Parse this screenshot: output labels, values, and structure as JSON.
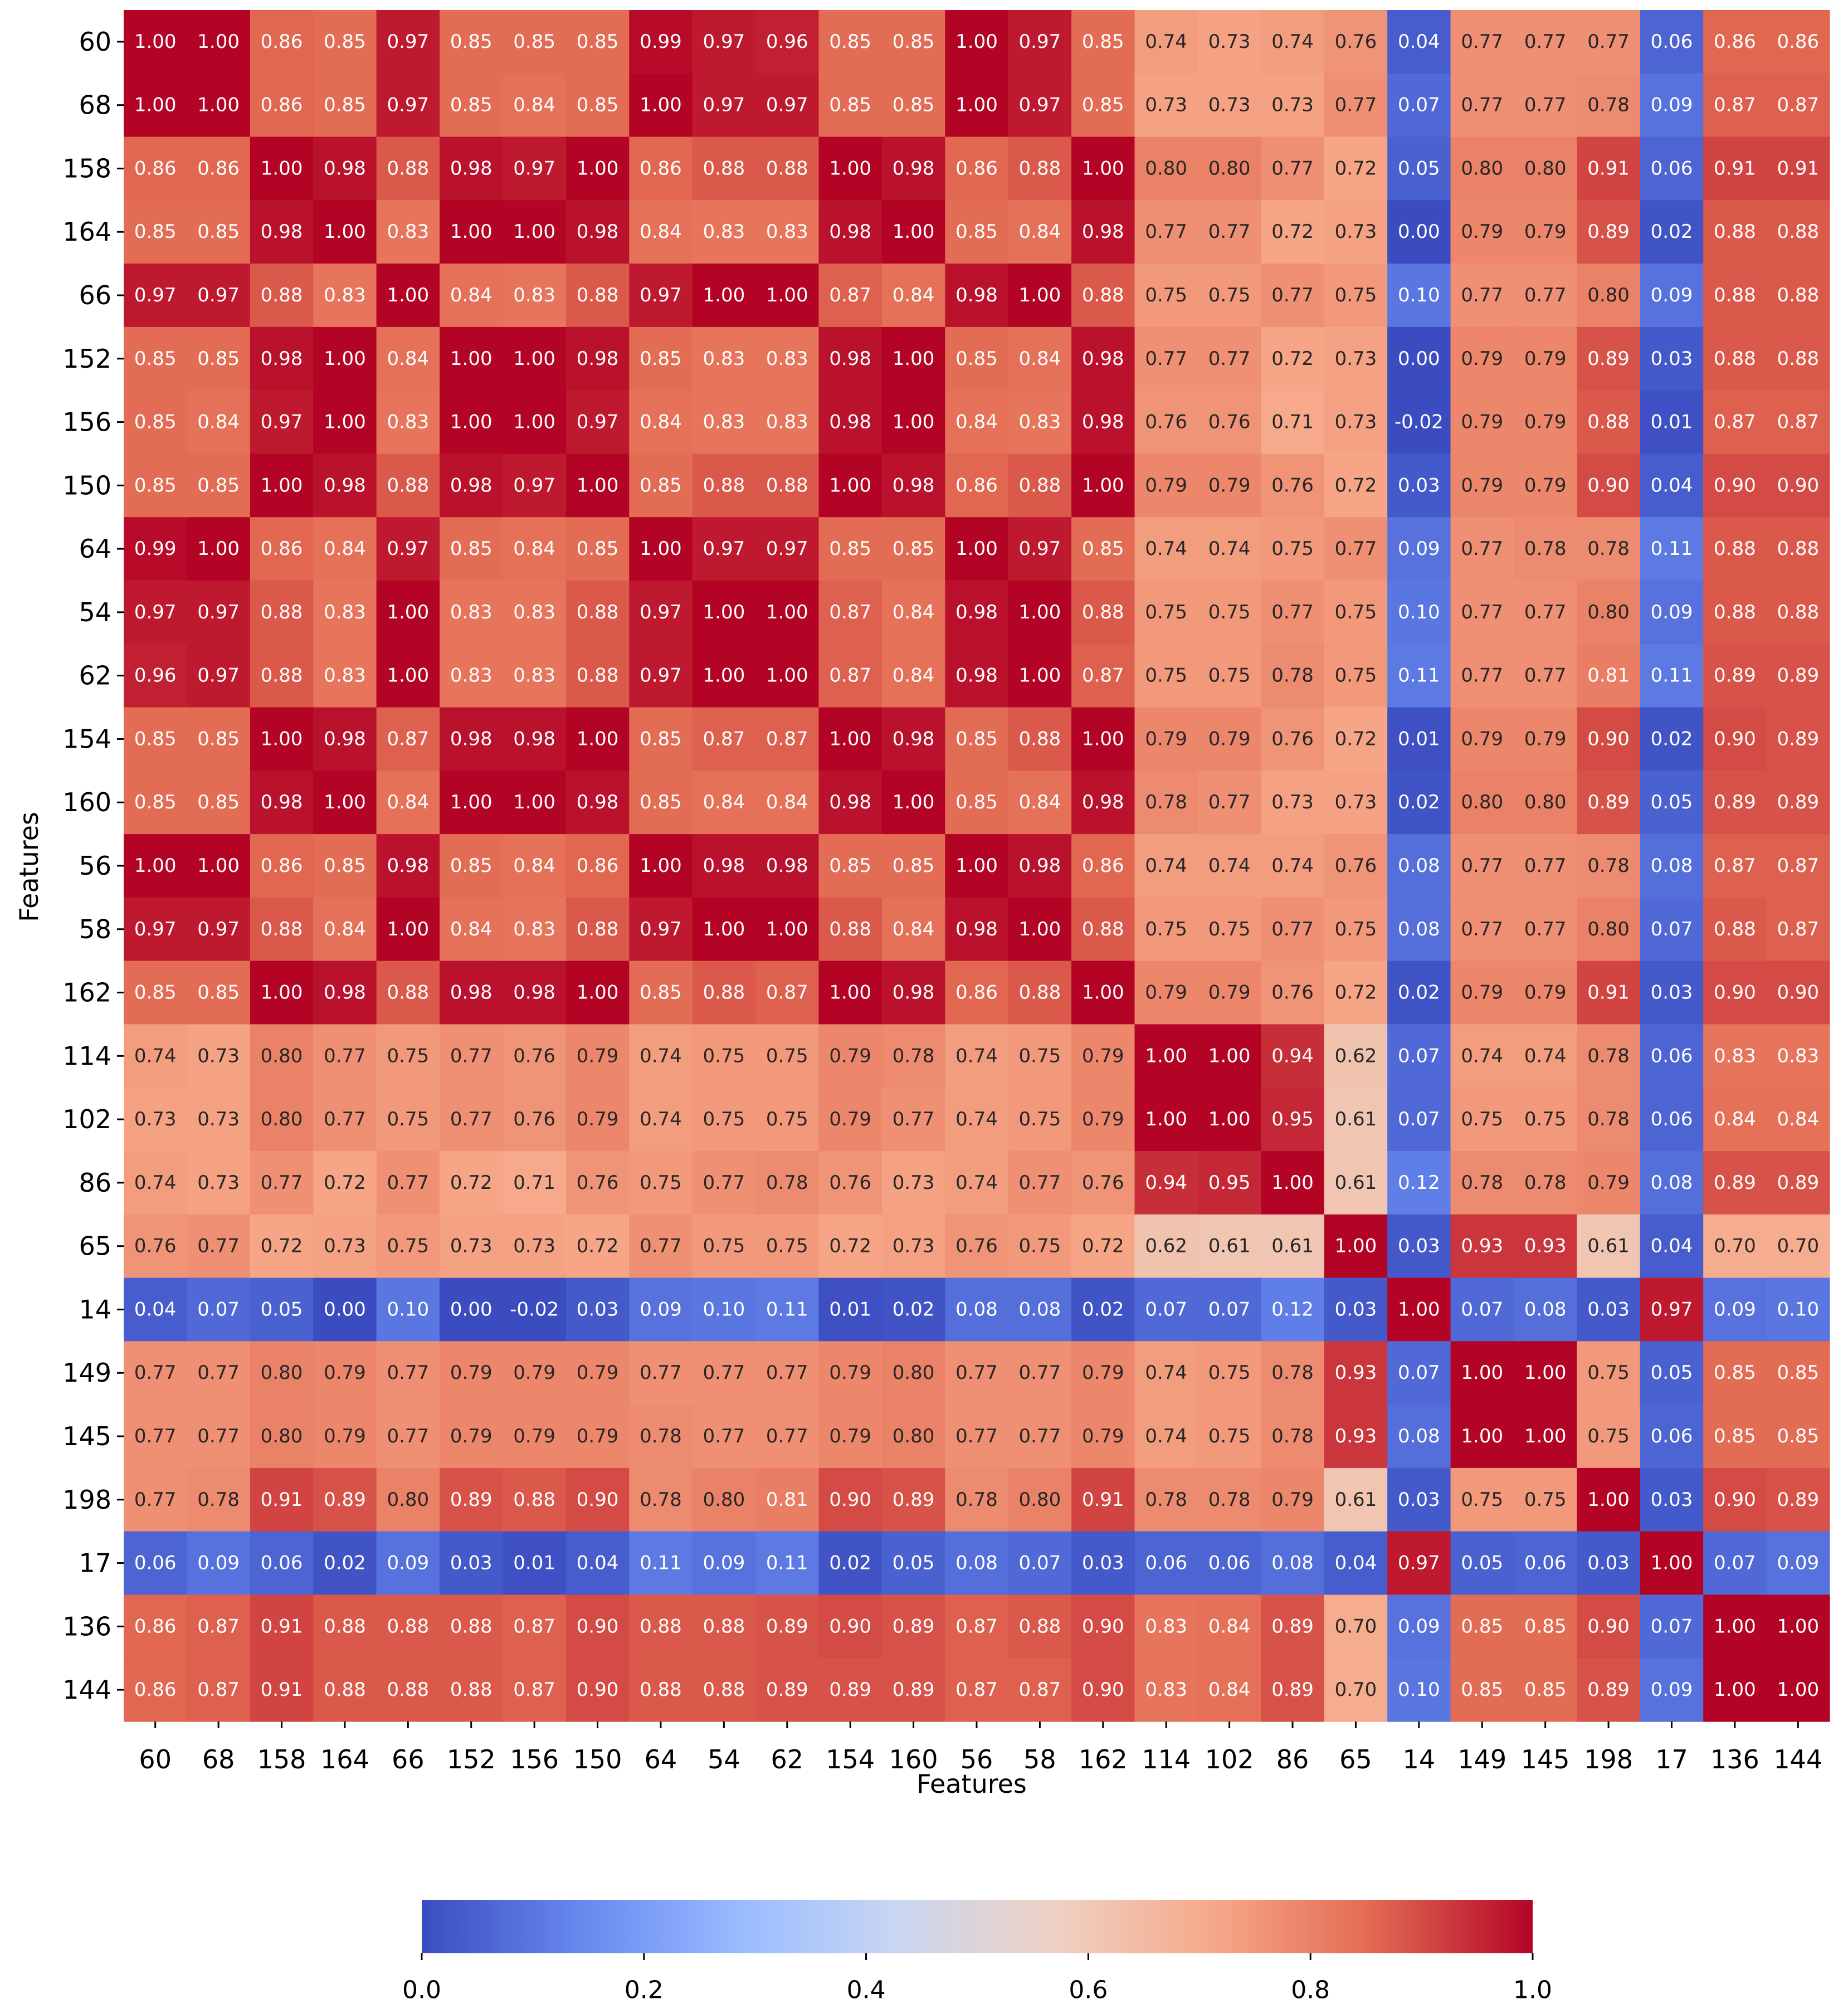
{
  "chart_data": {
    "type": "heatmap",
    "xlabel": "Features",
    "ylabel": "Features",
    "features": [
      "60",
      "68",
      "158",
      "164",
      "66",
      "152",
      "156",
      "150",
      "64",
      "54",
      "62",
      "154",
      "160",
      "56",
      "58",
      "162",
      "114",
      "102",
      "86",
      "65",
      "14",
      "149",
      "145",
      "198",
      "17",
      "136",
      "144"
    ],
    "x_ticks_shown": [
      "60",
      "68",
      "158",
      "164",
      "66",
      "152",
      "156",
      "150",
      "64",
      "54",
      "62",
      "154",
      "160",
      "56",
      "58",
      "162",
      "114",
      "102",
      "86",
      "65",
      "14",
      "149",
      "145",
      "198",
      "17",
      "136",
      "144"
    ],
    "values": [
      [
        1.0,
        1.0,
        0.86,
        0.85,
        0.97,
        0.85,
        0.85,
        0.85,
        0.99,
        0.97,
        0.96,
        0.85,
        0.85,
        1.0,
        0.97,
        0.85,
        0.74,
        0.73,
        0.74,
        0.76,
        0.04,
        0.77,
        0.77,
        0.77,
        0.06,
        0.86,
        0.86
      ],
      [
        1.0,
        1.0,
        0.86,
        0.85,
        0.97,
        0.85,
        0.84,
        0.85,
        1.0,
        0.97,
        0.97,
        0.85,
        0.85,
        1.0,
        0.97,
        0.85,
        0.73,
        0.73,
        0.73,
        0.77,
        0.07,
        0.77,
        0.77,
        0.78,
        0.09,
        0.87,
        0.87
      ],
      [
        0.86,
        0.86,
        1.0,
        0.98,
        0.88,
        0.98,
        0.97,
        1.0,
        0.86,
        0.88,
        0.88,
        1.0,
        0.98,
        0.86,
        0.88,
        1.0,
        0.8,
        0.8,
        0.77,
        0.72,
        0.05,
        0.8,
        0.8,
        0.91,
        0.06,
        0.91,
        0.91
      ],
      [
        0.85,
        0.85,
        0.98,
        1.0,
        0.83,
        1.0,
        1.0,
        0.98,
        0.84,
        0.83,
        0.83,
        0.98,
        1.0,
        0.85,
        0.84,
        0.98,
        0.77,
        0.77,
        0.72,
        0.73,
        -0.0,
        0.79,
        0.79,
        0.89,
        0.02,
        0.88,
        0.88
      ],
      [
        0.97,
        0.97,
        0.88,
        0.83,
        1.0,
        0.84,
        0.83,
        0.88,
        0.97,
        1.0,
        1.0,
        0.87,
        0.84,
        0.98,
        1.0,
        0.88,
        0.75,
        0.75,
        0.77,
        0.75,
        0.1,
        0.77,
        0.77,
        0.8,
        0.09,
        0.88,
        0.88
      ],
      [
        0.85,
        0.85,
        0.98,
        1.0,
        0.84,
        1.0,
        1.0,
        0.98,
        0.85,
        0.83,
        0.83,
        0.98,
        1.0,
        0.85,
        0.84,
        0.98,
        0.77,
        0.77,
        0.72,
        0.73,
        0.0,
        0.79,
        0.79,
        0.89,
        0.03,
        0.88,
        0.88
      ],
      [
        0.85,
        0.84,
        0.97,
        1.0,
        0.83,
        1.0,
        1.0,
        0.97,
        0.84,
        0.83,
        0.83,
        0.98,
        1.0,
        0.84,
        0.83,
        0.98,
        0.76,
        0.76,
        0.71,
        0.73,
        -0.02,
        0.79,
        0.79,
        0.88,
        0.01,
        0.87,
        0.87
      ],
      [
        0.85,
        0.85,
        1.0,
        0.98,
        0.88,
        0.98,
        0.97,
        1.0,
        0.85,
        0.88,
        0.88,
        1.0,
        0.98,
        0.86,
        0.88,
        1.0,
        0.79,
        0.79,
        0.76,
        0.72,
        0.03,
        0.79,
        0.79,
        0.9,
        0.04,
        0.9,
        0.9
      ],
      [
        0.99,
        1.0,
        0.86,
        0.84,
        0.97,
        0.85,
        0.84,
        0.85,
        1.0,
        0.97,
        0.97,
        0.85,
        0.85,
        1.0,
        0.97,
        0.85,
        0.74,
        0.74,
        0.75,
        0.77,
        0.09,
        0.77,
        0.78,
        0.78,
        0.11,
        0.88,
        0.88
      ],
      [
        0.97,
        0.97,
        0.88,
        0.83,
        1.0,
        0.83,
        0.83,
        0.88,
        0.97,
        1.0,
        1.0,
        0.87,
        0.84,
        0.98,
        1.0,
        0.88,
        0.75,
        0.75,
        0.77,
        0.75,
        0.1,
        0.77,
        0.77,
        0.8,
        0.09,
        0.88,
        0.88
      ],
      [
        0.96,
        0.97,
        0.88,
        0.83,
        1.0,
        0.83,
        0.83,
        0.88,
        0.97,
        1.0,
        1.0,
        0.87,
        0.84,
        0.98,
        1.0,
        0.87,
        0.75,
        0.75,
        0.78,
        0.75,
        0.11,
        0.77,
        0.77,
        0.81,
        0.11,
        0.89,
        0.89
      ],
      [
        0.85,
        0.85,
        1.0,
        0.98,
        0.87,
        0.98,
        0.98,
        1.0,
        0.85,
        0.87,
        0.87,
        1.0,
        0.98,
        0.85,
        0.88,
        1.0,
        0.79,
        0.79,
        0.76,
        0.72,
        0.01,
        0.79,
        0.79,
        0.9,
        0.02,
        0.9,
        0.89
      ],
      [
        0.85,
        0.85,
        0.98,
        1.0,
        0.84,
        1.0,
        1.0,
        0.98,
        0.85,
        0.84,
        0.84,
        0.98,
        1.0,
        0.85,
        0.84,
        0.98,
        0.78,
        0.77,
        0.73,
        0.73,
        0.02,
        0.8,
        0.8,
        0.89,
        0.05,
        0.89,
        0.89
      ],
      [
        1.0,
        1.0,
        0.86,
        0.85,
        0.98,
        0.85,
        0.84,
        0.86,
        1.0,
        0.98,
        0.98,
        0.85,
        0.85,
        1.0,
        0.98,
        0.86,
        0.74,
        0.74,
        0.74,
        0.76,
        0.08,
        0.77,
        0.77,
        0.78,
        0.08,
        0.87,
        0.87
      ],
      [
        0.97,
        0.97,
        0.88,
        0.84,
        1.0,
        0.84,
        0.83,
        0.88,
        0.97,
        1.0,
        1.0,
        0.88,
        0.84,
        0.98,
        1.0,
        0.88,
        0.75,
        0.75,
        0.77,
        0.75,
        0.08,
        0.77,
        0.77,
        0.8,
        0.07,
        0.88,
        0.87
      ],
      [
        0.85,
        0.85,
        1.0,
        0.98,
        0.88,
        0.98,
        0.98,
        1.0,
        0.85,
        0.88,
        0.87,
        1.0,
        0.98,
        0.86,
        0.88,
        1.0,
        0.79,
        0.79,
        0.76,
        0.72,
        0.02,
        0.79,
        0.79,
        0.91,
        0.03,
        0.9,
        0.9
      ],
      [
        0.74,
        0.73,
        0.8,
        0.77,
        0.75,
        0.77,
        0.76,
        0.79,
        0.74,
        0.75,
        0.75,
        0.79,
        0.78,
        0.74,
        0.75,
        0.79,
        1.0,
        1.0,
        0.94,
        0.62,
        0.07,
        0.74,
        0.74,
        0.78,
        0.06,
        0.83,
        0.83
      ],
      [
        0.73,
        0.73,
        0.8,
        0.77,
        0.75,
        0.77,
        0.76,
        0.79,
        0.74,
        0.75,
        0.75,
        0.79,
        0.77,
        0.74,
        0.75,
        0.79,
        1.0,
        1.0,
        0.95,
        0.61,
        0.07,
        0.75,
        0.75,
        0.78,
        0.06,
        0.84,
        0.84
      ],
      [
        0.74,
        0.73,
        0.77,
        0.72,
        0.77,
        0.72,
        0.71,
        0.76,
        0.75,
        0.77,
        0.78,
        0.76,
        0.73,
        0.74,
        0.77,
        0.76,
        0.94,
        0.95,
        1.0,
        0.61,
        0.12,
        0.78,
        0.78,
        0.79,
        0.08,
        0.89,
        0.89
      ],
      [
        0.76,
        0.77,
        0.72,
        0.73,
        0.75,
        0.73,
        0.73,
        0.72,
        0.77,
        0.75,
        0.75,
        0.72,
        0.73,
        0.76,
        0.75,
        0.72,
        0.62,
        0.61,
        0.61,
        1.0,
        0.03,
        0.93,
        0.93,
        0.61,
        0.04,
        0.7,
        0.7
      ],
      [
        0.04,
        0.07,
        0.05,
        -0.0,
        0.1,
        0.0,
        -0.02,
        0.03,
        0.09,
        0.1,
        0.11,
        0.01,
        0.02,
        0.08,
        0.08,
        0.02,
        0.07,
        0.07,
        0.12,
        0.03,
        1.0,
        0.07,
        0.08,
        0.03,
        0.97,
        0.09,
        0.1
      ],
      [
        0.77,
        0.77,
        0.8,
        0.79,
        0.77,
        0.79,
        0.79,
        0.79,
        0.77,
        0.77,
        0.77,
        0.79,
        0.8,
        0.77,
        0.77,
        0.79,
        0.74,
        0.75,
        0.78,
        0.93,
        0.07,
        1.0,
        1.0,
        0.75,
        0.05,
        0.85,
        0.85
      ],
      [
        0.77,
        0.77,
        0.8,
        0.79,
        0.77,
        0.79,
        0.79,
        0.79,
        0.78,
        0.77,
        0.77,
        0.79,
        0.8,
        0.77,
        0.77,
        0.79,
        0.74,
        0.75,
        0.78,
        0.93,
        0.08,
        1.0,
        1.0,
        0.75,
        0.06,
        0.85,
        0.85
      ],
      [
        0.77,
        0.78,
        0.91,
        0.89,
        0.8,
        0.89,
        0.88,
        0.9,
        0.78,
        0.8,
        0.81,
        0.9,
        0.89,
        0.78,
        0.8,
        0.91,
        0.78,
        0.78,
        0.79,
        0.61,
        0.03,
        0.75,
        0.75,
        1.0,
        0.03,
        0.9,
        0.89
      ],
      [
        0.06,
        0.09,
        0.06,
        0.02,
        0.09,
        0.03,
        0.01,
        0.04,
        0.11,
        0.09,
        0.11,
        0.02,
        0.05,
        0.08,
        0.07,
        0.03,
        0.06,
        0.06,
        0.08,
        0.04,
        0.97,
        0.05,
        0.06,
        0.03,
        1.0,
        0.07,
        0.09
      ],
      [
        0.86,
        0.87,
        0.91,
        0.88,
        0.88,
        0.88,
        0.87,
        0.9,
        0.88,
        0.88,
        0.89,
        0.9,
        0.89,
        0.87,
        0.88,
        0.9,
        0.83,
        0.84,
        0.89,
        0.7,
        0.09,
        0.85,
        0.85,
        0.9,
        0.07,
        1.0,
        1.0
      ],
      [
        0.86,
        0.87,
        0.91,
        0.88,
        0.88,
        0.88,
        0.87,
        0.9,
        0.88,
        0.88,
        0.89,
        0.89,
        0.89,
        0.87,
        0.87,
        0.9,
        0.83,
        0.84,
        0.89,
        0.7,
        0.1,
        0.85,
        0.85,
        0.89,
        0.09,
        1.0,
        1.0
      ]
    ],
    "value_format": "2 decimals",
    "colormap": "coolwarm",
    "color_range": [
      0.0,
      1.0
    ],
    "colormap_stops": [
      "#3b4cc0",
      "#6788ee",
      "#9abbff",
      "#c9d7f0",
      "#edd1c2",
      "#f7a889",
      "#e26952",
      "#b40426"
    ],
    "colorbar": {
      "orientation": "horizontal",
      "placement": "bottom",
      "ticks": [
        0.0,
        0.2,
        0.4,
        0.6,
        0.8,
        1.0
      ],
      "tick_labels": [
        "0.0",
        "0.2",
        "0.4",
        "0.6",
        "0.8",
        "1.0"
      ]
    },
    "annotation_colors": {
      "on_dark": "#ffffff",
      "on_light": "#262626"
    },
    "grid": false
  }
}
